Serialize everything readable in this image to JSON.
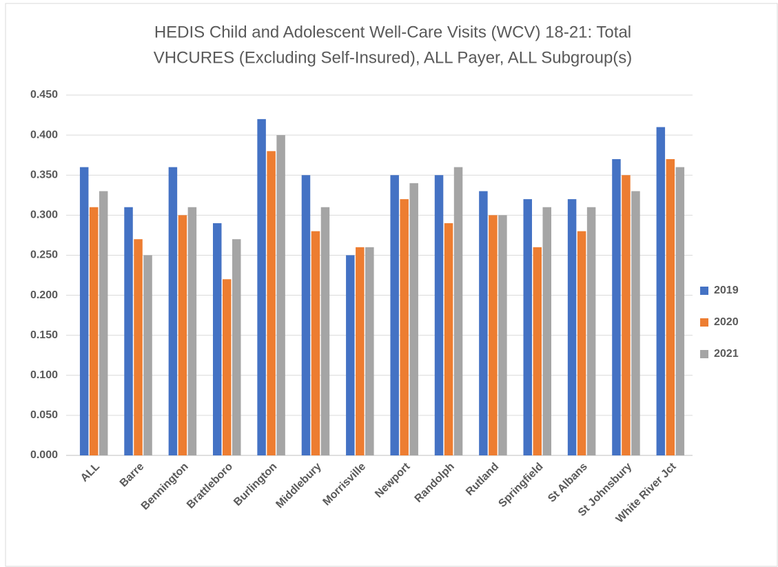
{
  "chart_data": {
    "type": "bar",
    "title": [
      "HEDIS Child and Adolescent Well-Care Visits (WCV) 18-21: Total",
      "VHCURES (Excluding Self-Insured), ALL Payer, ALL Subgroup(s)"
    ],
    "categories": [
      "ALL",
      "Barre",
      "Bennington",
      "Brattleboro",
      "Burlington",
      "Middlebury",
      "Morrisville",
      "Newport",
      "Randolph",
      "Rutland",
      "Springfield",
      "St Albans",
      "St Johnsbury",
      "White River Jct"
    ],
    "series": [
      {
        "name": "2019",
        "color": "#4472c4",
        "values": [
          0.36,
          0.31,
          0.36,
          0.29,
          0.42,
          0.35,
          0.25,
          0.35,
          0.35,
          0.33,
          0.32,
          0.32,
          0.37,
          0.41
        ]
      },
      {
        "name": "2020",
        "color": "#ed7d31",
        "values": [
          0.31,
          0.27,
          0.3,
          0.22,
          0.38,
          0.28,
          0.26,
          0.32,
          0.29,
          0.3,
          0.26,
          0.28,
          0.35,
          0.37
        ]
      },
      {
        "name": "2021",
        "color": "#a5a5a5",
        "values": [
          0.33,
          0.25,
          0.31,
          0.27,
          0.4,
          0.31,
          0.26,
          0.34,
          0.36,
          0.3,
          0.31,
          0.31,
          0.33,
          0.36
        ]
      }
    ],
    "ylim": [
      0,
      0.45
    ],
    "yticks": [
      {
        "value": 0,
        "label": "0.000"
      },
      {
        "value": 0.05,
        "label": "0.050"
      },
      {
        "value": 0.1,
        "label": "0.100"
      },
      {
        "value": 0.15,
        "label": "0.150"
      },
      {
        "value": 0.2,
        "label": "0.200"
      },
      {
        "value": 0.25,
        "label": "0.250"
      },
      {
        "value": 0.3,
        "label": "0.300"
      },
      {
        "value": 0.35,
        "label": "0.350"
      },
      {
        "value": 0.4,
        "label": "0.400"
      },
      {
        "value": 0.45,
        "label": "0.450"
      }
    ],
    "grid": true,
    "legend": "right"
  }
}
